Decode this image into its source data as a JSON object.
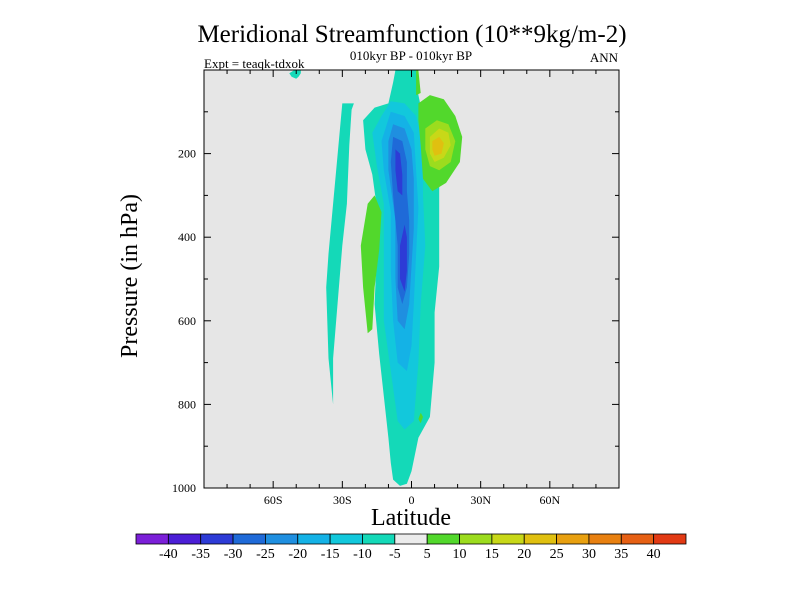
{
  "chart_data": {
    "type": "heatmap",
    "title": "Meridional Streamfunction (10**9kg/m-2)",
    "subtitle": "010kyr BP - 010kyr BP",
    "expt_label": "Expt = teaqk-tdxok",
    "season": "ANN",
    "xlabel": "Latitude",
    "ylabel": "Pressure (in hPa)",
    "xlim": [
      -90,
      90
    ],
    "ylim": [
      1000,
      0
    ],
    "x_ticks": [
      {
        "value": -60,
        "label": "60S"
      },
      {
        "value": -30,
        "label": "30S"
      },
      {
        "value": 0,
        "label": "0"
      },
      {
        "value": 30,
        "label": "30N"
      },
      {
        "value": 60,
        "label": "60N"
      }
    ],
    "y_ticks": [
      {
        "value": 200,
        "label": "200"
      },
      {
        "value": 400,
        "label": "400"
      },
      {
        "value": 600,
        "label": "600"
      },
      {
        "value": 800,
        "label": "800"
      },
      {
        "value": 1000,
        "label": "1000"
      }
    ],
    "colorbar": {
      "colors": [
        "#7b1fd8",
        "#4b1ed6",
        "#2d3bd6",
        "#1f6ad8",
        "#1f8fe0",
        "#14b2e6",
        "#12c8dc",
        "#14d9b8",
        "#ececec",
        "#52d82c",
        "#9cdc1e",
        "#c8d818",
        "#e0c010",
        "#e8a010",
        "#e88010",
        "#e66014",
        "#e23a14"
      ],
      "labels": [
        "-40",
        "-35",
        "-30",
        "-25",
        "-20",
        "-15",
        "-10",
        "-5",
        "5",
        "10",
        "15",
        "20",
        "25",
        "30",
        "35",
        "40"
      ]
    },
    "contour_regions": [
      {
        "level": -10,
        "color": "#14d9b8",
        "points": [
          [
            -51,
            1
          ],
          [
            -48,
            1
          ],
          [
            -48,
            8
          ],
          [
            -49,
            16
          ],
          [
            -50,
            21
          ],
          [
            -52,
            16
          ],
          [
            -53,
            8
          ]
        ]
      },
      {
        "level": -10,
        "color": "#14d9b8",
        "points": [
          [
            -30,
            80
          ],
          [
            -25,
            80
          ],
          [
            -26,
            95
          ],
          [
            -27,
            180
          ],
          [
            -28,
            320
          ],
          [
            -30,
            420
          ],
          [
            -34,
            690
          ],
          [
            -34,
            800
          ],
          [
            -36,
            690
          ],
          [
            -37,
            520
          ],
          [
            -36,
            440
          ],
          [
            -34,
            320
          ]
        ]
      },
      {
        "level": -10,
        "color": "#14d9b8",
        "points": [
          [
            -7,
            1
          ],
          [
            2,
            1
          ],
          [
            3,
            60
          ],
          [
            6,
            140
          ],
          [
            12,
            230
          ],
          [
            12,
            470
          ],
          [
            10,
            580
          ],
          [
            10,
            700
          ],
          [
            8,
            830
          ],
          [
            3,
            880
          ],
          [
            0,
            960
          ],
          [
            -2,
            990
          ],
          [
            -5,
            995
          ],
          [
            -8,
            980
          ],
          [
            -9,
            940
          ],
          [
            -10,
            880
          ],
          [
            -12,
            780
          ],
          [
            -14,
            680
          ],
          [
            -16,
            560
          ],
          [
            -15,
            430
          ],
          [
            -15,
            330
          ],
          [
            -17,
            250
          ],
          [
            -20,
            190
          ],
          [
            -21,
            120
          ],
          [
            -16,
            90
          ],
          [
            -10,
            80
          ],
          [
            -8,
            30
          ]
        ]
      },
      {
        "level": -15,
        "color": "#12c8dc",
        "points": [
          [
            -9,
            75
          ],
          [
            -3,
            80
          ],
          [
            2,
            110
          ],
          [
            5,
            180
          ],
          [
            5,
            300
          ],
          [
            6,
            420
          ],
          [
            4,
            560
          ],
          [
            3,
            700
          ],
          [
            1,
            840
          ],
          [
            -3,
            860
          ],
          [
            -6,
            840
          ],
          [
            -9,
            720
          ],
          [
            -12,
            600
          ],
          [
            -12,
            480
          ],
          [
            -12,
            320
          ],
          [
            -15,
            230
          ],
          [
            -17,
            150
          ],
          [
            -13,
            110
          ]
        ]
      },
      {
        "level": -20,
        "color": "#14b2e6",
        "points": [
          [
            -9,
            100
          ],
          [
            -3,
            110
          ],
          [
            1,
            150
          ],
          [
            2,
            240
          ],
          [
            3,
            330
          ],
          [
            2,
            440
          ],
          [
            1,
            560
          ],
          [
            0,
            660
          ],
          [
            -2,
            720
          ],
          [
            -6,
            700
          ],
          [
            -8,
            600
          ],
          [
            -9,
            480
          ],
          [
            -9,
            340
          ],
          [
            -12,
            240
          ],
          [
            -13,
            170
          ]
        ]
      },
      {
        "level": -25,
        "color": "#1f8fe0",
        "points": [
          [
            -8,
            130
          ],
          [
            -3,
            140
          ],
          [
            0,
            190
          ],
          [
            1,
            260
          ],
          [
            1,
            380
          ],
          [
            0,
            470
          ],
          [
            -1,
            560
          ],
          [
            -3,
            620
          ],
          [
            -6,
            600
          ],
          [
            -7,
            500
          ],
          [
            -7,
            360
          ],
          [
            -10,
            240
          ],
          [
            -10,
            170
          ]
        ]
      },
      {
        "level": -30,
        "color": "#1f6ad8",
        "points": [
          [
            -8,
            160
          ],
          [
            -4,
            170
          ],
          [
            -2,
            220
          ],
          [
            -2,
            290
          ],
          [
            -1,
            360
          ],
          [
            -1,
            440
          ],
          [
            -2,
            520
          ],
          [
            -4,
            560
          ],
          [
            -6,
            520
          ],
          [
            -6,
            420
          ],
          [
            -8,
            300
          ],
          [
            -9,
            220
          ]
        ]
      },
      {
        "level": -35,
        "color": "#2d3bd6",
        "points": [
          [
            -7,
            190
          ],
          [
            -5,
            200
          ],
          [
            -4,
            250
          ],
          [
            -4,
            300
          ],
          [
            -6,
            290
          ],
          [
            -7,
            240
          ]
        ]
      },
      {
        "level": -35,
        "color": "#2d3bd6",
        "points": [
          [
            -3,
            370
          ],
          [
            -2,
            400
          ],
          [
            -2,
            480
          ],
          [
            -3,
            530
          ],
          [
            -5,
            500
          ],
          [
            -5,
            420
          ]
        ]
      },
      {
        "level": 5,
        "color": "#52d82c",
        "points": [
          [
            3,
            80
          ],
          [
            8,
            60
          ],
          [
            14,
            70
          ],
          [
            19,
            110
          ],
          [
            22,
            160
          ],
          [
            21,
            220
          ],
          [
            15,
            270
          ],
          [
            9,
            290
          ],
          [
            5,
            260
          ],
          [
            4,
            180
          ],
          [
            3,
            120
          ]
        ]
      },
      {
        "level": 10,
        "color": "#9cdc1e",
        "points": [
          [
            6,
            140
          ],
          [
            11,
            120
          ],
          [
            16,
            130
          ],
          [
            19,
            170
          ],
          [
            17,
            220
          ],
          [
            12,
            240
          ],
          [
            8,
            230
          ],
          [
            6,
            190
          ]
        ]
      },
      {
        "level": 15,
        "color": "#c8d818",
        "points": [
          [
            8,
            160
          ],
          [
            12,
            140
          ],
          [
            16,
            150
          ],
          [
            17,
            180
          ],
          [
            14,
            210
          ],
          [
            10,
            220
          ],
          [
            8,
            200
          ]
        ]
      },
      {
        "level": 20,
        "color": "#e0c010",
        "points": [
          [
            9,
            170
          ],
          [
            12,
            160
          ],
          [
            14,
            175
          ],
          [
            13,
            200
          ],
          [
            10,
            205
          ],
          [
            9,
            190
          ]
        ]
      },
      {
        "level": 5,
        "color": "#52d82c",
        "points": [
          [
            2,
            1
          ],
          [
            3,
            1
          ],
          [
            4,
            55
          ],
          [
            2,
            60
          ]
        ]
      },
      {
        "level": 5,
        "color": "#52d82c",
        "points": [
          [
            -19,
            320
          ],
          [
            -16,
            300
          ],
          [
            -13,
            340
          ],
          [
            -14,
            430
          ],
          [
            -16,
            520
          ],
          [
            -17,
            620
          ],
          [
            -19,
            630
          ],
          [
            -21,
            520
          ],
          [
            -22,
            420
          ]
        ]
      },
      {
        "level": 5,
        "color": "#52d82c",
        "points": [
          [
            4,
            820
          ],
          [
            5,
            830
          ],
          [
            4,
            845
          ],
          [
            3,
            835
          ]
        ]
      }
    ]
  }
}
